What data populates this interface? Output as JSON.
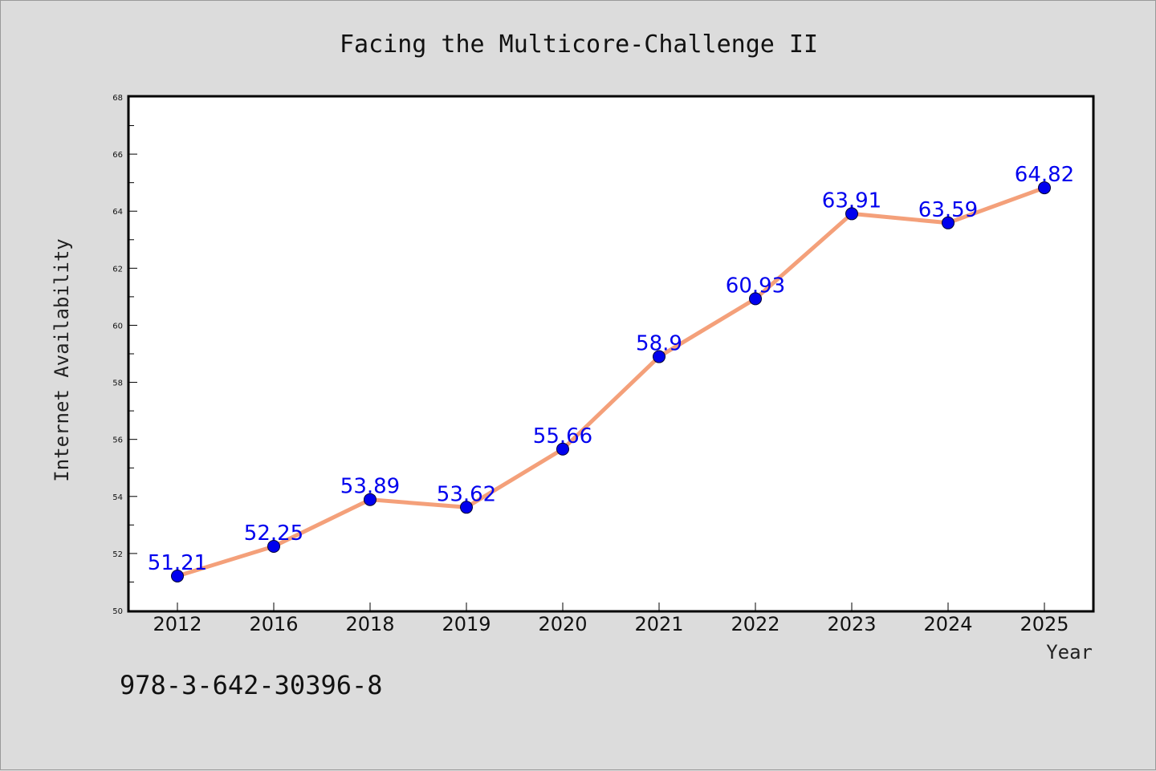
{
  "note": "978-3-642-30396-8",
  "chart_data": {
    "type": "line",
    "title": "Facing the Multicore-Challenge II",
    "xlabel": "Year",
    "ylabel": "Internet Availability",
    "categories": [
      "2012",
      "2016",
      "2018",
      "2019",
      "2020",
      "2021",
      "2022",
      "2023",
      "2024",
      "2025"
    ],
    "series": [
      {
        "values": [
          51.21,
          52.25,
          53.89,
          53.62,
          55.66,
          58.9,
          60.93,
          63.91,
          63.59,
          64.82
        ],
        "labels": [
          "51.21",
          "52.25",
          "53.89",
          "53.62",
          "55.66",
          "58.9",
          "60.93",
          "63.91",
          "63.59",
          "64.82"
        ],
        "line_color": "#f4a07a",
        "marker_color": "#0000ee",
        "label_color": "#0000ee"
      }
    ],
    "ylim": [
      50,
      68
    ],
    "yticks": [
      50,
      52,
      54,
      56,
      58,
      60,
      62,
      64,
      66,
      68
    ],
    "grid": false,
    "legend": "none",
    "plot_background": "#ffffff"
  }
}
